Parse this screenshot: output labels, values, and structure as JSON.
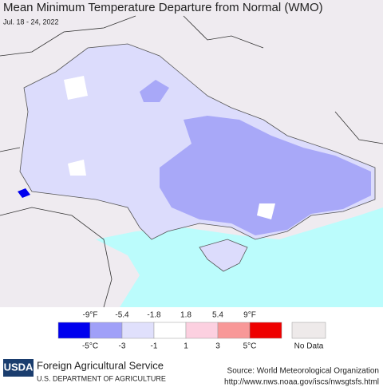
{
  "header": {
    "title": "Mean Minimum Temperature Departure from Normal (WMO)",
    "subtitle": "Jul. 18 - 24, 2022"
  },
  "legend": {
    "colors": [
      "#0000ee",
      "#a0a0f8",
      "#e0e0fc",
      "#ffffff",
      "#fcd0e0",
      "#f89898",
      "#ee0000"
    ],
    "no_data_color": "#eeeaea",
    "fahrenheit_labels": [
      "-9°F",
      "-5.4",
      "-1.8",
      "1.8",
      "5.4",
      "9°F"
    ],
    "celsius_labels": [
      "-5°C",
      "-3",
      "-1",
      "1",
      "3",
      "5°C"
    ],
    "no_data_label": "No Data"
  },
  "footer": {
    "logo": "USDA",
    "agency": "Foreign Agricultural Service",
    "department": "U.S. DEPARTMENT OF AGRICULTURE",
    "source": "Source: World Meteorological Organization",
    "url": "http://www.nws.noaa.gov/iscs/nwsgtsfs.html"
  }
}
